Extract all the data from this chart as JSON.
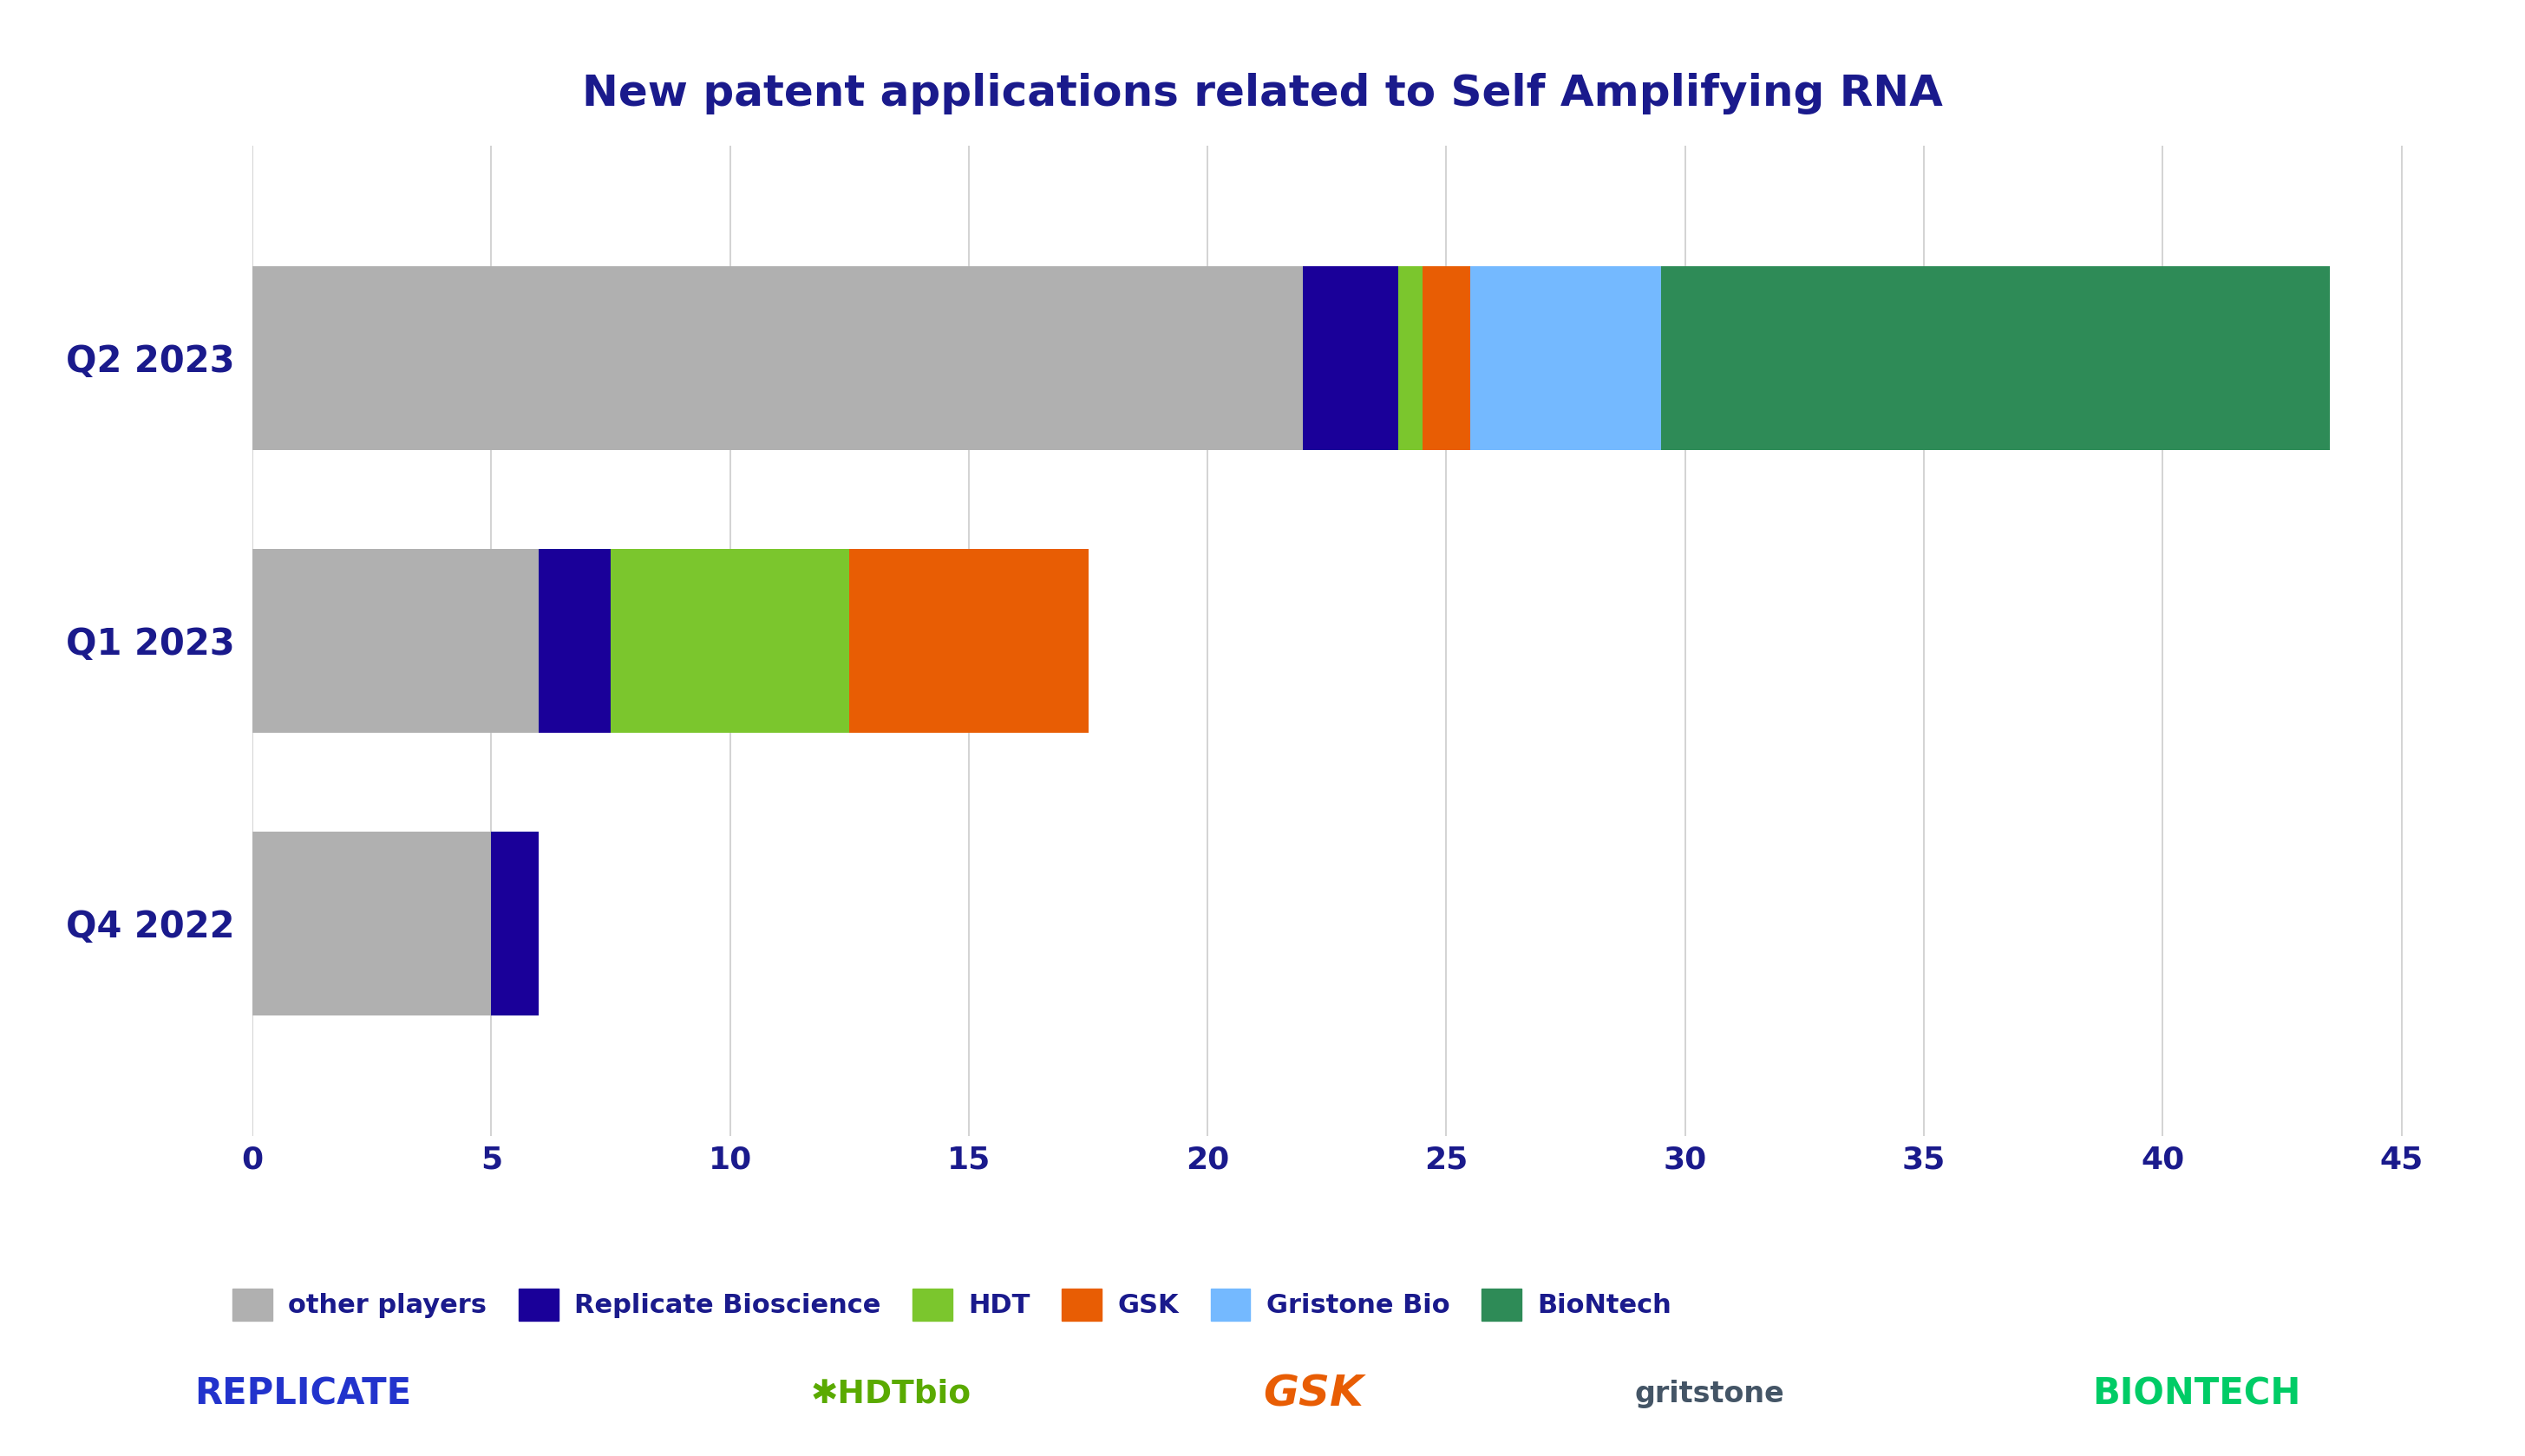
{
  "title": "New patent applications related to Self Amplifying RNA",
  "title_color": "#1a1a8c",
  "title_fontsize": 36,
  "categories": [
    "Q4 2022",
    "Q1 2023",
    "Q2 2023"
  ],
  "series": {
    "other players": {
      "values": [
        5,
        6,
        22
      ],
      "color": "#b0b0b0"
    },
    "Replicate Bioscience": {
      "values": [
        1,
        1.5,
        2
      ],
      "color": "#1a0099"
    },
    "HDT": {
      "values": [
        0,
        5,
        0.5
      ],
      "color": "#7bc62d"
    },
    "GSK": {
      "values": [
        0,
        5,
        1
      ],
      "color": "#e85d04"
    },
    "Gristone Bio": {
      "values": [
        0,
        0,
        4
      ],
      "color": "#74b9ff"
    },
    "BioNtech": {
      "values": [
        0,
        0,
        14
      ],
      "color": "#2e8b57"
    }
  },
  "xlim": [
    0,
    46
  ],
  "xticks": [
    0,
    5,
    10,
    15,
    20,
    25,
    30,
    35,
    40,
    45
  ],
  "tick_fontsize": 26,
  "ylabel_fontsize": 30,
  "background_color": "#ffffff",
  "grid_color": "#cccccc",
  "bar_height": 0.65,
  "bottom_banner_color": "#3d6b57",
  "legend_fontsize": 22
}
